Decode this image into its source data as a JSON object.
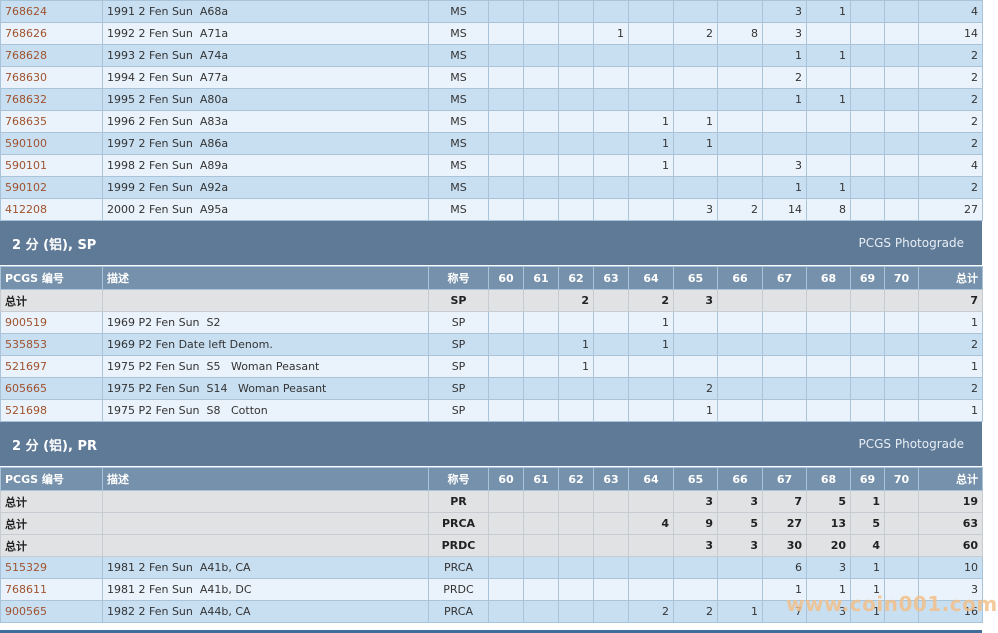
{
  "sections": [
    {
      "title": "",
      "rows": [
        {
          "type": "coin",
          "code": "768624",
          "desc": "1991 2 Fen Sun  A68a",
          "grade": "MS",
          "cells": [
            "",
            "",
            "",
            "",
            "",
            "",
            "",
            "3",
            "1",
            "",
            "",
            "4"
          ]
        },
        {
          "type": "coin",
          "code": "768626",
          "desc": "1992 2 Fen Sun  A71a",
          "grade": "MS",
          "cells": [
            "",
            "",
            "",
            "1",
            "",
            "2",
            "8",
            "3",
            "",
            "",
            "",
            "14"
          ]
        },
        {
          "type": "coin",
          "code": "768628",
          "desc": "1993 2 Fen Sun  A74a",
          "grade": "MS",
          "cells": [
            "",
            "",
            "",
            "",
            "",
            "",
            "",
            "1",
            "1",
            "",
            "",
            "2"
          ]
        },
        {
          "type": "coin",
          "code": "768630",
          "desc": "1994 2 Fen Sun  A77a",
          "grade": "MS",
          "cells": [
            "",
            "",
            "",
            "",
            "",
            "",
            "",
            "2",
            "",
            "",
            "",
            "2"
          ]
        },
        {
          "type": "coin",
          "code": "768632",
          "desc": "1995 2 Fen Sun  A80a",
          "grade": "MS",
          "cells": [
            "",
            "",
            "",
            "",
            "",
            "",
            "",
            "1",
            "1",
            "",
            "",
            "2"
          ]
        },
        {
          "type": "coin",
          "code": "768635",
          "desc": "1996 2 Fen Sun  A83a",
          "grade": "MS",
          "cells": [
            "",
            "",
            "",
            "",
            "1",
            "1",
            "",
            "",
            "",
            "",
            "",
            "2"
          ]
        },
        {
          "type": "coin",
          "code": "590100",
          "desc": "1997 2 Fen Sun  A86a",
          "grade": "MS",
          "cells": [
            "",
            "",
            "",
            "",
            "1",
            "1",
            "",
            "",
            "",
            "",
            "",
            "2"
          ]
        },
        {
          "type": "coin",
          "code": "590101",
          "desc": "1998 2 Fen Sun  A89a",
          "grade": "MS",
          "cells": [
            "",
            "",
            "",
            "",
            "1",
            "",
            "",
            "3",
            "",
            "",
            "",
            "4"
          ]
        },
        {
          "type": "coin",
          "code": "590102",
          "desc": "1999 2 Fen Sun  A92a",
          "grade": "MS",
          "cells": [
            "",
            "",
            "",
            "",
            "",
            "",
            "",
            "1",
            "1",
            "",
            "",
            "2"
          ]
        },
        {
          "type": "coin",
          "code": "412208",
          "desc": "2000 2 Fen Sun  A95a",
          "grade": "MS",
          "cells": [
            "",
            "",
            "",
            "",
            "",
            "3",
            "2",
            "14",
            "8",
            "",
            "",
            "27"
          ]
        }
      ]
    },
    {
      "title": "2 分 (铝), SP",
      "link": "PCGS Photograde",
      "header": [
        "PCGS 编号",
        "描述",
        "称号",
        "60",
        "61",
        "62",
        "63",
        "64",
        "65",
        "66",
        "67",
        "68",
        "69",
        "70",
        "总计"
      ],
      "rows": [
        {
          "type": "total",
          "code": "总计",
          "desc": "",
          "grade": "SP",
          "cells": [
            "",
            "",
            "2",
            "",
            "2",
            "3",
            "",
            "",
            "",
            "",
            "",
            "7"
          ]
        },
        {
          "type": "coin",
          "code": "900519",
          "desc": "1969 P2 Fen Sun  S2",
          "grade": "SP",
          "cells": [
            "",
            "",
            "",
            "",
            "1",
            "",
            "",
            "",
            "",
            "",
            "",
            "1"
          ]
        },
        {
          "type": "coin",
          "code": "535853",
          "desc": "1969 P2 Fen Date left Denom.",
          "grade": "SP",
          "cells": [
            "",
            "",
            "1",
            "",
            "1",
            "",
            "",
            "",
            "",
            "",
            "",
            "2"
          ]
        },
        {
          "type": "coin",
          "code": "521697",
          "desc": "1975 P2 Fen Sun  S5   Woman Peasant",
          "grade": "SP",
          "cells": [
            "",
            "",
            "1",
            "",
            "",
            "",
            "",
            "",
            "",
            "",
            "",
            "1"
          ]
        },
        {
          "type": "coin",
          "code": "605665",
          "desc": "1975 P2 Fen Sun  S14   Woman Peasant",
          "grade": "SP",
          "cells": [
            "",
            "",
            "",
            "",
            "",
            "2",
            "",
            "",
            "",
            "",
            "",
            "2"
          ]
        },
        {
          "type": "coin",
          "code": "521698",
          "desc": "1975 P2 Fen Sun  S8   Cotton",
          "grade": "SP",
          "cells": [
            "",
            "",
            "",
            "",
            "",
            "1",
            "",
            "",
            "",
            "",
            "",
            "1"
          ]
        }
      ]
    },
    {
      "title": "2 分 (铝), PR",
      "link": "PCGS Photograde",
      "header": [
        "PCGS 编号",
        "描述",
        "称号",
        "60",
        "61",
        "62",
        "63",
        "64",
        "65",
        "66",
        "67",
        "68",
        "69",
        "70",
        "总计"
      ],
      "rows": [
        {
          "type": "total",
          "code": "总计",
          "desc": "",
          "grade": "PR",
          "cells": [
            "",
            "",
            "",
            "",
            "",
            "3",
            "3",
            "7",
            "5",
            "1",
            "",
            "19"
          ]
        },
        {
          "type": "total",
          "code": "总计",
          "desc": "",
          "grade": "PRCA",
          "cells": [
            "",
            "",
            "",
            "",
            "4",
            "9",
            "5",
            "27",
            "13",
            "5",
            "",
            "63"
          ]
        },
        {
          "type": "total",
          "code": "总计",
          "desc": "",
          "grade": "PRDC",
          "cells": [
            "",
            "",
            "",
            "",
            "",
            "3",
            "3",
            "30",
            "20",
            "4",
            "",
            "60"
          ]
        },
        {
          "type": "coin",
          "code": "515329",
          "desc": "1981 2 Fen Sun  A41b, CA",
          "grade": "PRCA",
          "cells": [
            "",
            "",
            "",
            "",
            "",
            "",
            "",
            "6",
            "3",
            "1",
            "",
            "10"
          ]
        },
        {
          "type": "coin",
          "code": "768611",
          "desc": "1981 2 Fen Sun  A41b, DC",
          "grade": "PRDC",
          "cells": [
            "",
            "",
            "",
            "",
            "",
            "",
            "",
            "1",
            "1",
            "1",
            "",
            "3"
          ]
        },
        {
          "type": "coin",
          "code": "900565",
          "desc": "1982 2 Fen Sun  A44b, CA",
          "grade": "PRCA",
          "cells": [
            "",
            "",
            "",
            "",
            "2",
            "2",
            "1",
            "7",
            "3",
            "1",
            "",
            "16"
          ]
        }
      ]
    }
  ],
  "watermark": "www.coin001.com"
}
